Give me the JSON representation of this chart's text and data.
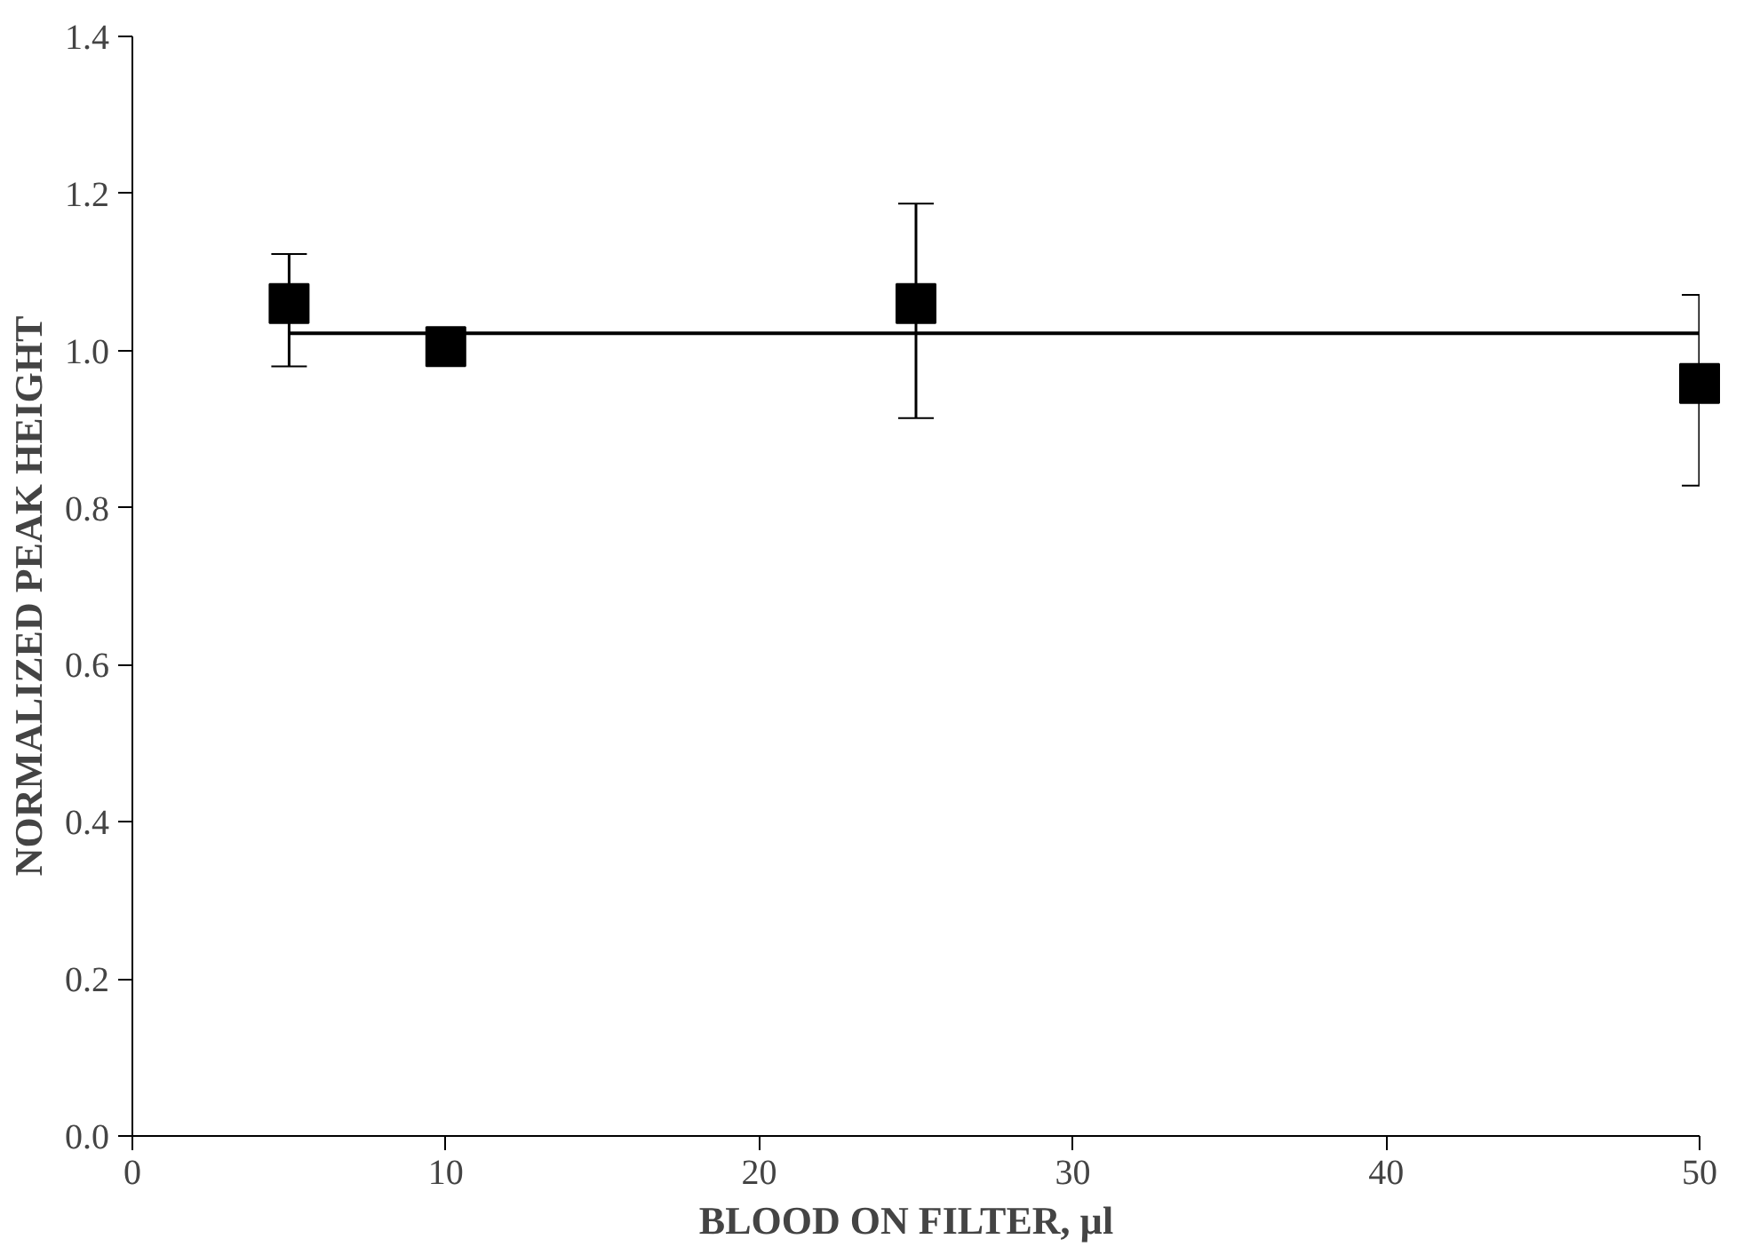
{
  "chart_data": {
    "type": "scatter",
    "xlabel": "BLOOD  ON  FILTER, µl",
    "ylabel": "NORMALIZED  PEAK  HEIGHT",
    "xlim": [
      0,
      50
    ],
    "ylim": [
      0,
      1.4
    ],
    "xticks": [
      0,
      10,
      20,
      30,
      40,
      50
    ],
    "yticks": [
      {
        "value": 0,
        "label": "0.0"
      },
      {
        "value": 0.2,
        "label": "0.2"
      },
      {
        "value": 0.4,
        "label": "0.4"
      },
      {
        "value": 0.6,
        "label": "0.6"
      },
      {
        "value": 0.8,
        "label": "0.8"
      },
      {
        "value": 1.0,
        "label": "1.0"
      },
      {
        "value": 1.2,
        "label": "1.2"
      },
      {
        "value": 1.4,
        "label": "1.4"
      }
    ],
    "grid": false,
    "marker": "square",
    "series": [
      {
        "color": "#000000",
        "x": [
          5,
          10,
          25,
          50
        ],
        "values": [
          1.06,
          1.005,
          1.06,
          0.958
        ],
        "errors": [
          [
            0.98,
            1.123
          ],
          null,
          [
            0.914,
            1.187
          ],
          [
            0.828,
            1.071
          ]
        ]
      },
      {
        "type": "line",
        "color": "#000000",
        "x": [
          5,
          50
        ],
        "values": [
          1.022,
          1.022
        ],
        "line_style": "solid",
        "marker": "none"
      }
    ]
  }
}
